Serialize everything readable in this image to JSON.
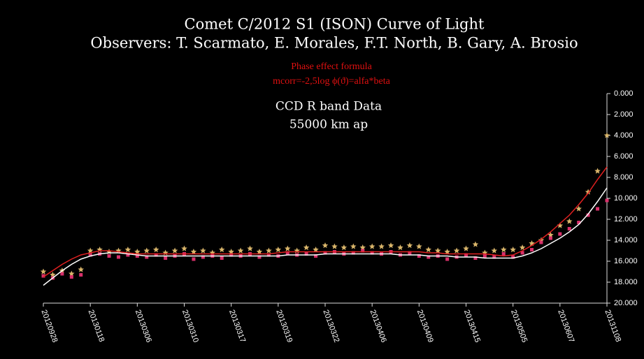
{
  "chart_data": {
    "type": "scatter",
    "title": "Comet C/2012 S1 (ISON) Curve of Light",
    "subtitle": "Observers: T. Scarmato, E. Morales, F.T. North, B. Gary, A. Brosio",
    "annotations": [
      "Phase effect  formula",
      "mcorr=-2,5log ϕ(ϑ)=alfa*beta",
      "CCD   R band  Data",
      "55000  km  ap"
    ],
    "categories": [
      "20120928",
      null,
      null,
      null,
      null,
      "20130118",
      null,
      null,
      null,
      null,
      "20130306",
      null,
      null,
      null,
      null,
      "20130310",
      null,
      null,
      null,
      null,
      "20130317",
      null,
      null,
      null,
      null,
      "20130319",
      null,
      null,
      null,
      null,
      "20130322",
      null,
      null,
      null,
      null,
      "20130406",
      null,
      null,
      null,
      null,
      "20130409",
      null,
      null,
      null,
      null,
      "20130415",
      null,
      null,
      null,
      null,
      "20130505",
      null,
      null,
      null,
      null,
      "20130607",
      null,
      null,
      null,
      null,
      "20131108"
    ],
    "series": [
      {
        "color": "#d9b56a",
        "marker": "star",
        "values": [
          17.0,
          17.3,
          16.9,
          17.2,
          16.8,
          15.0,
          14.9,
          15.1,
          15.0,
          14.9,
          15.1,
          15.0,
          14.9,
          15.2,
          15.0,
          14.8,
          15.1,
          15.0,
          15.2,
          14.9,
          15.1,
          15.0,
          14.8,
          15.1,
          15.0,
          14.9,
          14.8,
          15.0,
          14.7,
          14.9,
          14.5,
          14.6,
          14.7,
          14.6,
          14.7,
          14.6,
          14.6,
          14.5,
          14.7,
          14.5,
          14.6,
          14.9,
          15.0,
          15.1,
          15.0,
          14.8,
          14.4,
          15.2,
          15.0,
          14.9,
          14.9,
          14.7,
          14.3,
          14.0,
          13.5,
          12.6,
          12.2,
          11.0,
          9.4,
          7.4,
          4.0
        ]
      },
      {
        "color": "#d8306a",
        "marker": "square",
        "values": [
          17.4,
          17.6,
          17.2,
          17.5,
          17.3,
          15.4,
          15.3,
          15.5,
          15.6,
          15.4,
          15.5,
          15.6,
          15.4,
          15.7,
          15.5,
          15.3,
          15.8,
          15.6,
          15.5,
          15.7,
          15.4,
          15.5,
          15.3,
          15.6,
          15.4,
          15.5,
          15.2,
          15.4,
          15.3,
          15.5,
          15.2,
          15.1,
          15.3,
          15.2,
          15.0,
          15.2,
          15.3,
          15.1,
          15.4,
          15.2,
          15.5,
          15.6,
          15.5,
          15.8,
          15.6,
          15.4,
          15.7,
          15.5,
          15.6,
          15.3,
          15.6,
          15.2,
          14.9,
          14.2,
          13.8,
          13.4,
          12.9,
          12.3,
          11.6,
          11.0,
          10.2
        ]
      },
      {
        "color": "#ffffff",
        "marker": "line",
        "values": [
          18.3,
          17.6,
          16.9,
          16.3,
          15.8,
          15.5,
          15.3,
          15.2,
          15.2,
          15.3,
          15.4,
          15.5,
          15.5,
          15.5,
          15.5,
          15.5,
          15.5,
          15.5,
          15.5,
          15.5,
          15.5,
          15.5,
          15.5,
          15.5,
          15.5,
          15.5,
          15.4,
          15.4,
          15.4,
          15.4,
          15.3,
          15.3,
          15.3,
          15.3,
          15.3,
          15.3,
          15.3,
          15.3,
          15.4,
          15.4,
          15.4,
          15.5,
          15.5,
          15.5,
          15.6,
          15.6,
          15.6,
          15.7,
          15.7,
          15.7,
          15.7,
          15.5,
          15.2,
          14.8,
          14.3,
          13.8,
          13.2,
          12.5,
          11.5,
          10.3,
          9.0
        ]
      },
      {
        "color": "#e02020",
        "marker": "line",
        "values": [
          17.5,
          16.9,
          16.3,
          15.8,
          15.4,
          15.2,
          15.0,
          15.0,
          15.1,
          15.2,
          15.3,
          15.3,
          15.3,
          15.3,
          15.3,
          15.3,
          15.3,
          15.3,
          15.3,
          15.3,
          15.3,
          15.3,
          15.3,
          15.3,
          15.3,
          15.2,
          15.1,
          15.1,
          15.1,
          15.1,
          15.1,
          15.1,
          15.1,
          15.1,
          15.1,
          15.1,
          15.1,
          15.1,
          15.1,
          15.1,
          15.1,
          15.2,
          15.2,
          15.3,
          15.3,
          15.3,
          15.3,
          15.3,
          15.4,
          15.5,
          15.4,
          15.0,
          14.5,
          13.9,
          13.2,
          12.4,
          11.6,
          10.6,
          9.5,
          8.2,
          7.0
        ]
      }
    ],
    "ylim": [
      0,
      20
    ],
    "inverted_y": true,
    "yticks": [
      {
        "value": 0,
        "label": "0.000"
      },
      {
        "value": 2,
        "label": "2.000"
      },
      {
        "value": 4,
        "label": "4.000"
      },
      {
        "value": 6,
        "label": "6.000"
      },
      {
        "value": 8,
        "label": "8.000"
      },
      {
        "value": 10,
        "label": "10.000"
      },
      {
        "value": 12,
        "label": "12.000"
      },
      {
        "value": 14,
        "label": "14.000"
      },
      {
        "value": 16,
        "label": "16.000"
      },
      {
        "value": 18,
        "label": "18.000"
      },
      {
        "value": 20,
        "label": "20.000"
      }
    ]
  }
}
